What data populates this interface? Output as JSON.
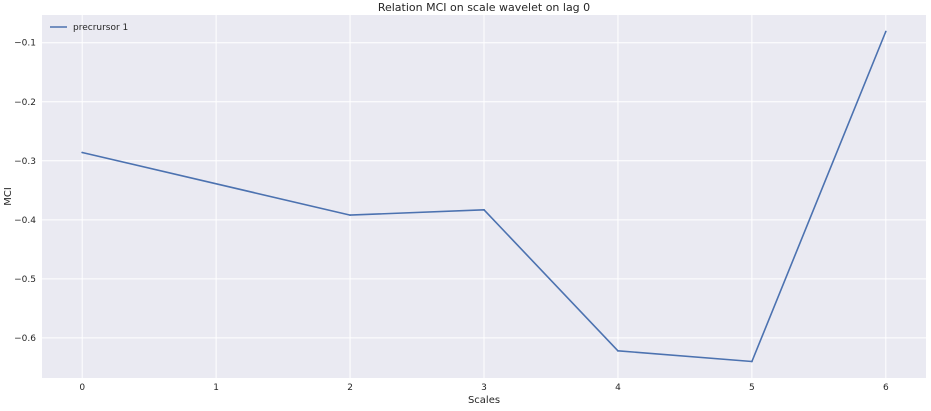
{
  "chart_data": {
    "type": "line",
    "title": "Relation MCI on scale wavelet on lag 0",
    "xlabel": "Scales",
    "ylabel": "MCI",
    "x": [
      0,
      1,
      2,
      3,
      4,
      5,
      6
    ],
    "series": [
      {
        "name": "precrursor 1",
        "color": "#4c72b0",
        "points": [
          {
            "x": 0,
            "y": -0.286
          },
          {
            "x": 2,
            "y": -0.392
          },
          {
            "x": 3,
            "y": -0.383
          },
          {
            "x": 4,
            "y": -0.622
          },
          {
            "x": 5,
            "y": -0.64
          },
          {
            "x": 6,
            "y": -0.081
          }
        ]
      }
    ],
    "xticks": [
      0,
      1,
      2,
      3,
      4,
      5,
      6
    ],
    "yticks": [
      -0.6,
      -0.5,
      -0.4,
      -0.3,
      -0.2,
      -0.1
    ],
    "ytick_labels": [
      "−0.6",
      "−0.5",
      "−0.4",
      "−0.3",
      "−0.2",
      "−0.1"
    ],
    "xlim": [
      -0.3,
      6.3
    ],
    "ylim": [
      -0.668,
      -0.053
    ],
    "grid": true,
    "legend_position": "top-left",
    "background_color": "#eaeaf2",
    "grid_color": "#ffffff"
  }
}
